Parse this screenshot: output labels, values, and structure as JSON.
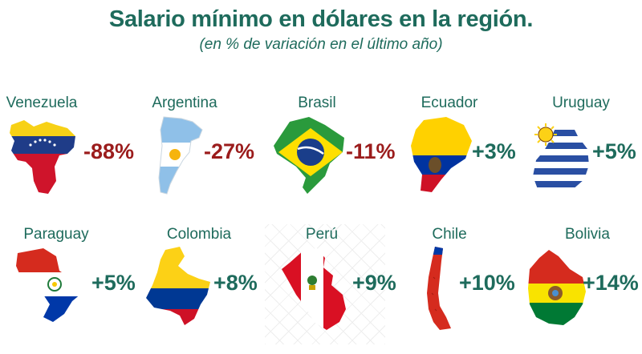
{
  "title": "Salario mínimo en dólares en la región.",
  "subtitle": "(en % de variación en el último año)",
  "countries": [
    {
      "name": "Venezuela",
      "change": "-88%",
      "sign": "negative"
    },
    {
      "name": "Argentina",
      "change": "-27%",
      "sign": "negative"
    },
    {
      "name": "Brasil",
      "change": "-11%",
      "sign": "negative"
    },
    {
      "name": "Ecuador",
      "change": "+3%",
      "sign": "positive"
    },
    {
      "name": "Uruguay",
      "change": "+5%",
      "sign": "positive"
    },
    {
      "name": "Paraguay",
      "change": "+5%",
      "sign": "positive"
    },
    {
      "name": "Colombia",
      "change": "+8%",
      "sign": "positive"
    },
    {
      "name": "Perú",
      "change": "+9%",
      "sign": "positive"
    },
    {
      "name": "Chile",
      "change": "+10%",
      "sign": "positive"
    },
    {
      "name": "Bolivia",
      "change": "+14%",
      "sign": "positive"
    }
  ],
  "colors": {
    "heading": "#1e6b5c",
    "negative": "#9b1c1c",
    "positive": "#1e6b5c"
  }
}
